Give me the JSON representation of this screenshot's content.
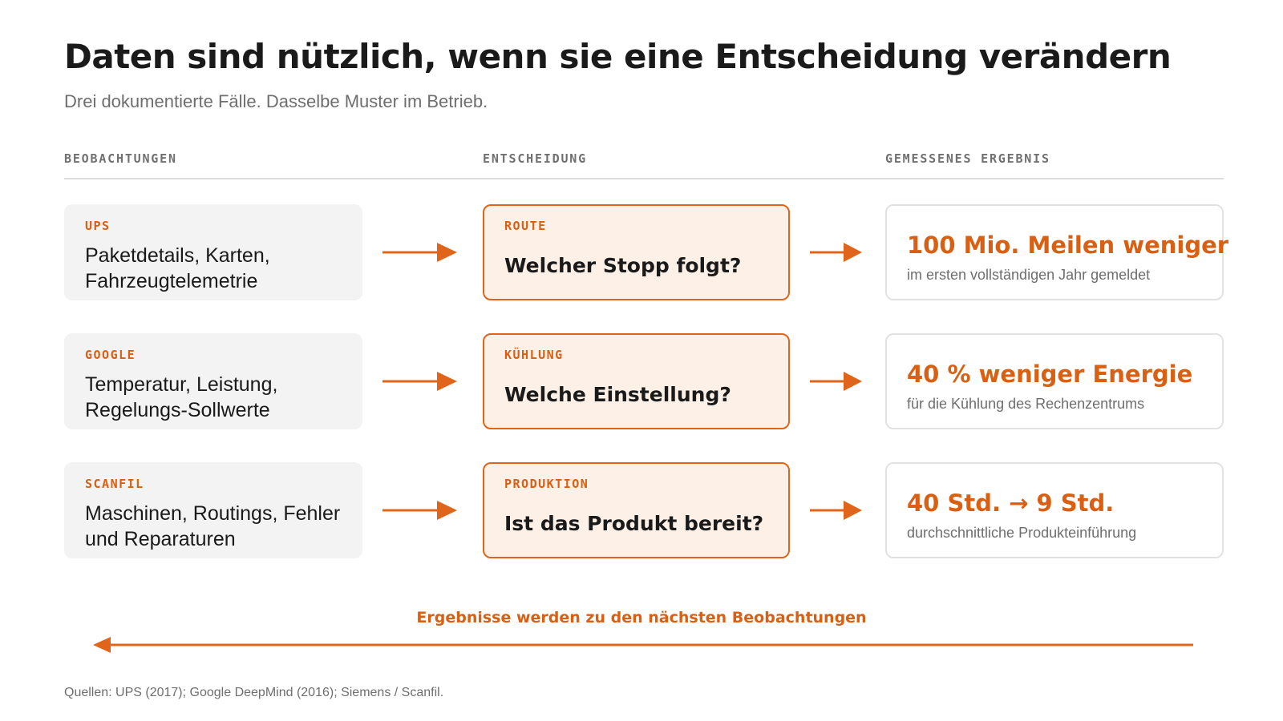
{
  "title": "Daten sind nützlich, wenn sie eine Entscheidung verändern",
  "subtitle": "Drei dokumentierte Fälle. Dasselbe Muster im Betrieb.",
  "columns": {
    "observations": "BEOBACHTUNGEN",
    "decision": "ENTSCHEIDUNG",
    "result": "GEMESSENES ERGEBNIS"
  },
  "rows": [
    {
      "company": "UPS",
      "observation": "Paketdetails, Karten, Fahrzeugtelemetrie",
      "decision_tag": "ROUTE",
      "decision": "Welcher Stopp folgt?",
      "result_main": "100 Mio. Meilen weniger",
      "result_detail": "im ersten vollständigen Jahr gemeldet"
    },
    {
      "company": "GOOGLE",
      "observation": "Temperatur, Leistung, Regelungs-Sollwerte",
      "decision_tag": "KÜHLUNG",
      "decision": "Welche Einstellung?",
      "result_main": "40 % weniger Energie",
      "result_detail": "für die Kühlung des Rechenzentrums"
    },
    {
      "company": "SCANFIL",
      "observation": "Maschinen, Routings, Fehler und Reparaturen",
      "decision_tag": "PRODUKTION",
      "decision": "Ist das Produkt bereit?",
      "result_main": "40 Std. → 9 Std.",
      "result_detail": "durchschnittliche Produkteinführung"
    }
  ],
  "loop_label": "Ergebnisse werden zu den nächsten Beobachtungen",
  "sources": "Quellen: UPS (2017); Google DeepMind (2016); Siemens / Scanfil.",
  "colors": {
    "accent": "#e0641a",
    "decision_fill": "#fdf0e6",
    "observation_fill": "#f3f3f3"
  }
}
